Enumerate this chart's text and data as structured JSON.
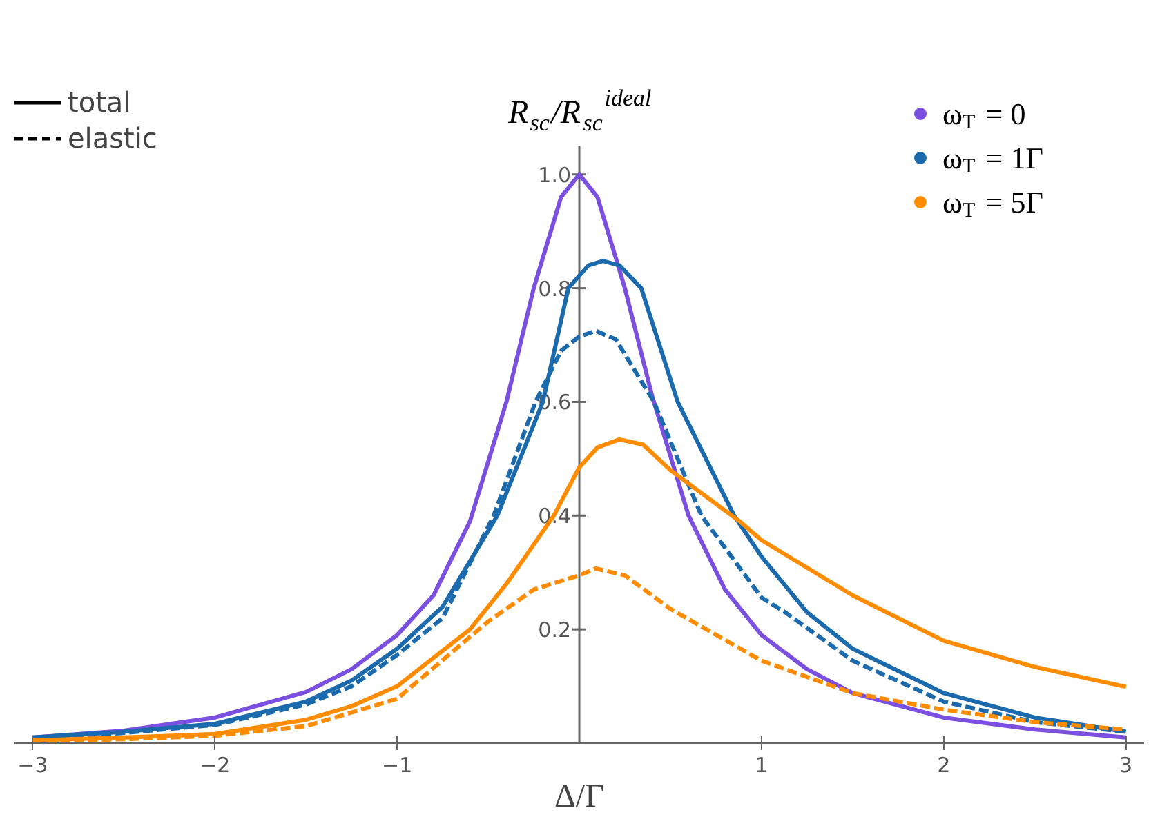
{
  "chart_data": {
    "type": "line",
    "xlabel": "Δ/Γ",
    "ylabel": "R$_{sc}$/R$_{sc}$$^{ideal}$",
    "xlim": [
      -3.1,
      3.1
    ],
    "ylim": [
      0,
      1.05
    ],
    "xticks": [
      {
        "value": -3,
        "label": "−3"
      },
      {
        "value": -2,
        "label": "−2"
      },
      {
        "value": -1,
        "label": "−1"
      },
      1,
      2,
      3
    ],
    "yticks": [
      0.2,
      0.4,
      0.6,
      0.8,
      {
        "value": 1,
        "label": "1.0"
      }
    ],
    "grid": false,
    "legend": "top right",
    "marker": "none",
    "annotations": [
      "total",
      "elastic"
    ],
    "series": [
      {
        "name": "ω$_{T}$ = 0",
        "color": "#7b4fe0",
        "line_style": "solid",
        "x": [
          -3,
          -2.5,
          -2,
          -1.5,
          -1.25,
          -1,
          -0.8,
          -0.6,
          -0.4,
          -0.25,
          -0.1,
          0,
          0.1,
          0.25,
          0.4,
          0.6,
          0.8,
          1,
          1.25,
          1.5,
          2,
          2.5,
          3
        ],
        "values": [
          0.01,
          0.022,
          0.045,
          0.09,
          0.13,
          0.19,
          0.26,
          0.39,
          0.6,
          0.8,
          0.96,
          1,
          0.96,
          0.8,
          0.61,
          0.4,
          0.27,
          0.19,
          0.13,
          0.088,
          0.045,
          0.024,
          0.01
        ]
      },
      {
        "name": "ω$_{T}$ = 1Γ",
        "color": "#1a6aad",
        "line_style": "solid",
        "x": [
          -3,
          -2.5,
          -2,
          -1.5,
          -1.25,
          -1,
          -0.75,
          -0.45,
          -0.2,
          -0.06,
          0.05,
          0.13,
          0.22,
          0.34,
          0.54,
          0.85,
          1,
          1.25,
          1.5,
          2,
          2.5,
          3
        ],
        "values": [
          0.01,
          0.02,
          0.034,
          0.073,
          0.11,
          0.166,
          0.24,
          0.4,
          0.6,
          0.8,
          0.84,
          0.848,
          0.84,
          0.8,
          0.6,
          0.4,
          0.328,
          0.23,
          0.166,
          0.088,
          0.045,
          0.02
        ]
      },
      {
        "color": "#1a6aad",
        "line_style": "dashed",
        "x": [
          -3,
          -2.5,
          -2,
          -1.5,
          -1.25,
          -1,
          -0.75,
          -0.47,
          -0.24,
          -0.1,
          0,
          0.09,
          0.2,
          0.41,
          0.67,
          1,
          1.13,
          1.5,
          2,
          2.5,
          3
        ],
        "values": [
          0.008,
          0.018,
          0.032,
          0.068,
          0.1,
          0.155,
          0.22,
          0.4,
          0.6,
          0.69,
          0.715,
          0.725,
          0.71,
          0.6,
          0.4,
          0.256,
          0.23,
          0.145,
          0.073,
          0.037,
          0.02
        ]
      },
      {
        "name": "ω$_{T}$ = 5Γ",
        "color": "#ff8c00",
        "line_style": "solid",
        "x": [
          -3,
          -2.5,
          -2,
          -1.5,
          -1.25,
          -1,
          -0.6,
          -0.4,
          -0.14,
          0,
          0.1,
          0.22,
          0.35,
          0.5,
          0.88,
          1,
          1.5,
          2,
          2.5,
          3
        ],
        "values": [
          0.005,
          0.01,
          0.016,
          0.041,
          0.065,
          0.1,
          0.2,
          0.28,
          0.4,
          0.485,
          0.52,
          0.534,
          0.525,
          0.48,
          0.39,
          0.357,
          0.26,
          0.18,
          0.134,
          0.099
        ]
      },
      {
        "color": "#ff8c00",
        "line_style": "dashed",
        "x": [
          -3,
          -2.5,
          -2,
          -1.5,
          -1,
          -0.5,
          -0.25,
          0,
          0.09,
          0.25,
          0.5,
          1,
          1.5,
          2,
          2.5,
          3
        ],
        "values": [
          0.003,
          0.007,
          0.013,
          0.03,
          0.078,
          0.214,
          0.27,
          0.295,
          0.307,
          0.295,
          0.236,
          0.145,
          0.088,
          0.059,
          0.037,
          0.024
        ]
      }
    ]
  }
}
